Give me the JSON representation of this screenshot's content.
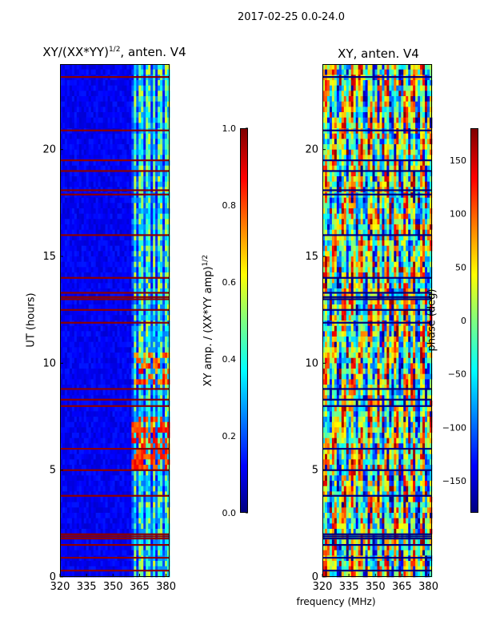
{
  "suptitle": "2017-02-25 0.0-24.0",
  "xlabel_shared": "frequency (MHz)",
  "panel_left": {
    "title_main": "XY/(XX*YY)",
    "title_sup": "1/2",
    "title_tail": ", anten. V4",
    "ylabel": "UT (hours)",
    "cbar_label_main": "XY amp. / (XX*YY amp)",
    "cbar_label_sup": "1/2"
  },
  "panel_right": {
    "title": "XY, anten. V4",
    "cbar_label": "phase (deg)"
  },
  "chart_data": [
    {
      "type": "heatmap",
      "title": "XY/(XX*YY)^1/2, anten. V4",
      "xlabel": "frequency (MHz)",
      "ylabel": "UT (hours)",
      "xlim": [
        320,
        382
      ],
      "ylim": [
        0,
        24
      ],
      "xticks": [
        320,
        335,
        350,
        365,
        380
      ],
      "yticks": [
        0,
        5,
        10,
        15,
        20
      ],
      "colorbar": {
        "label": "XY amp. / (XX*YY amp)^1/2",
        "range": [
          0.0,
          1.0
        ],
        "ticks": [
          0.0,
          0.2,
          0.4,
          0.6,
          0.8,
          1.0
        ],
        "tick_labels": [
          "0.0",
          "0.2",
          "0.4",
          "0.6",
          "0.8",
          "1.0"
        ],
        "colormap": "jet"
      },
      "features": {
        "bright_band_mhz": [
          360,
          382
        ],
        "flagged_hours": [
          0.3,
          0.9,
          1.5,
          1.8,
          1.9,
          2.0,
          3.8,
          5.0,
          6.0,
          8.0,
          8.3,
          8.8,
          11.9,
          12.5,
          13.0,
          13.1,
          13.3,
          14.0,
          16.0,
          17.9,
          18.1,
          19.0,
          19.5,
          20.9,
          23.4
        ]
      }
    },
    {
      "type": "heatmap",
      "title": "XY, anten. V4",
      "xlabel": "frequency (MHz)",
      "ylabel": "",
      "xlim": [
        320,
        382
      ],
      "ylim": [
        0,
        24
      ],
      "xticks": [
        320,
        335,
        350,
        365,
        380
      ],
      "yticks": [
        0,
        5,
        10,
        15,
        20
      ],
      "colorbar": {
        "label": "phase (deg)",
        "range": [
          -180,
          180
        ],
        "ticks": [
          -150,
          -100,
          -50,
          0,
          50,
          100,
          150
        ],
        "tick_labels": [
          "−150",
          "−100",
          "−50",
          "0",
          "50",
          "100",
          "150"
        ],
        "colormap": "jet"
      },
      "features": {
        "flagged_hours": [
          0.3,
          0.9,
          1.5,
          1.8,
          1.9,
          2.0,
          3.8,
          5.0,
          6.0,
          8.0,
          8.3,
          8.8,
          11.9,
          12.5,
          13.0,
          13.1,
          13.3,
          14.0,
          16.0,
          17.9,
          18.1,
          19.0,
          19.5,
          20.9,
          23.4
        ]
      }
    }
  ]
}
